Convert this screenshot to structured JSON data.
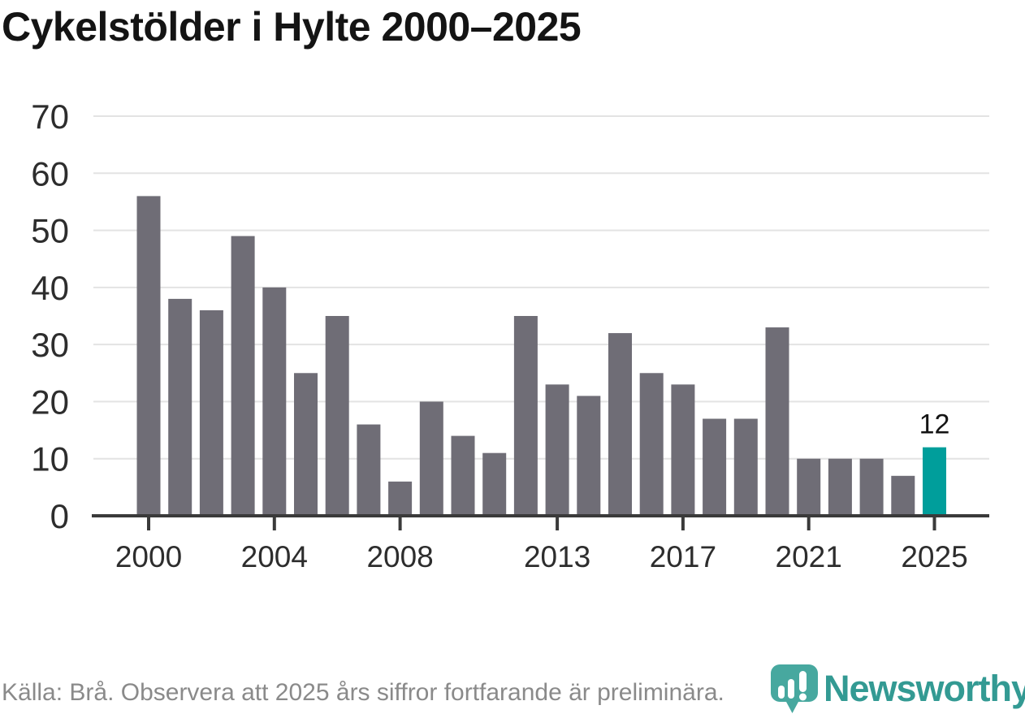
{
  "title": "Cykelstölder i Hylte 2000–2025",
  "chart_data": {
    "type": "bar",
    "title": "Cykelstölder i Hylte 2000–2025",
    "x": [
      2000,
      2001,
      2002,
      2003,
      2004,
      2005,
      2006,
      2007,
      2008,
      2009,
      2010,
      2011,
      2012,
      2013,
      2014,
      2015,
      2016,
      2017,
      2018,
      2019,
      2020,
      2021,
      2022,
      2023,
      2024,
      2025
    ],
    "values": [
      56,
      38,
      36,
      49,
      40,
      25,
      35,
      16,
      6,
      20,
      14,
      11,
      35,
      23,
      21,
      32,
      25,
      23,
      17,
      17,
      33,
      10,
      10,
      10,
      7,
      12
    ],
    "highlight_year": 2025,
    "highlight_value_label": "12",
    "ylim": [
      0,
      70
    ],
    "yticks": [
      0,
      10,
      20,
      30,
      40,
      50,
      60,
      70
    ],
    "xtick_years": [
      2000,
      2004,
      2008,
      2013,
      2017,
      2021,
      2025
    ],
    "xtick_labels": [
      "2000",
      "2004",
      "2008",
      "2013",
      "2017",
      "2021",
      "2025"
    ],
    "grid": "horizontal-light-gray",
    "legend": "none",
    "xlabel": "",
    "ylabel": ""
  },
  "footer": {
    "source_note": "Källa: Brå. Observera att 2025 års siffror fortfarande är preliminära.",
    "brand": "Newsworthy"
  },
  "colors": {
    "bar": "#6f6d76",
    "bar_highlight": "#009e9b",
    "gridline": "#e3e3e3",
    "axis_line": "#3a3a3a",
    "tick_label": "#2d2d2d",
    "title_text": "#141414",
    "value_label": "#141414",
    "footer_text": "#8a8a8a",
    "logo_mark": "#47a89f",
    "logo_word": "#339a93"
  }
}
